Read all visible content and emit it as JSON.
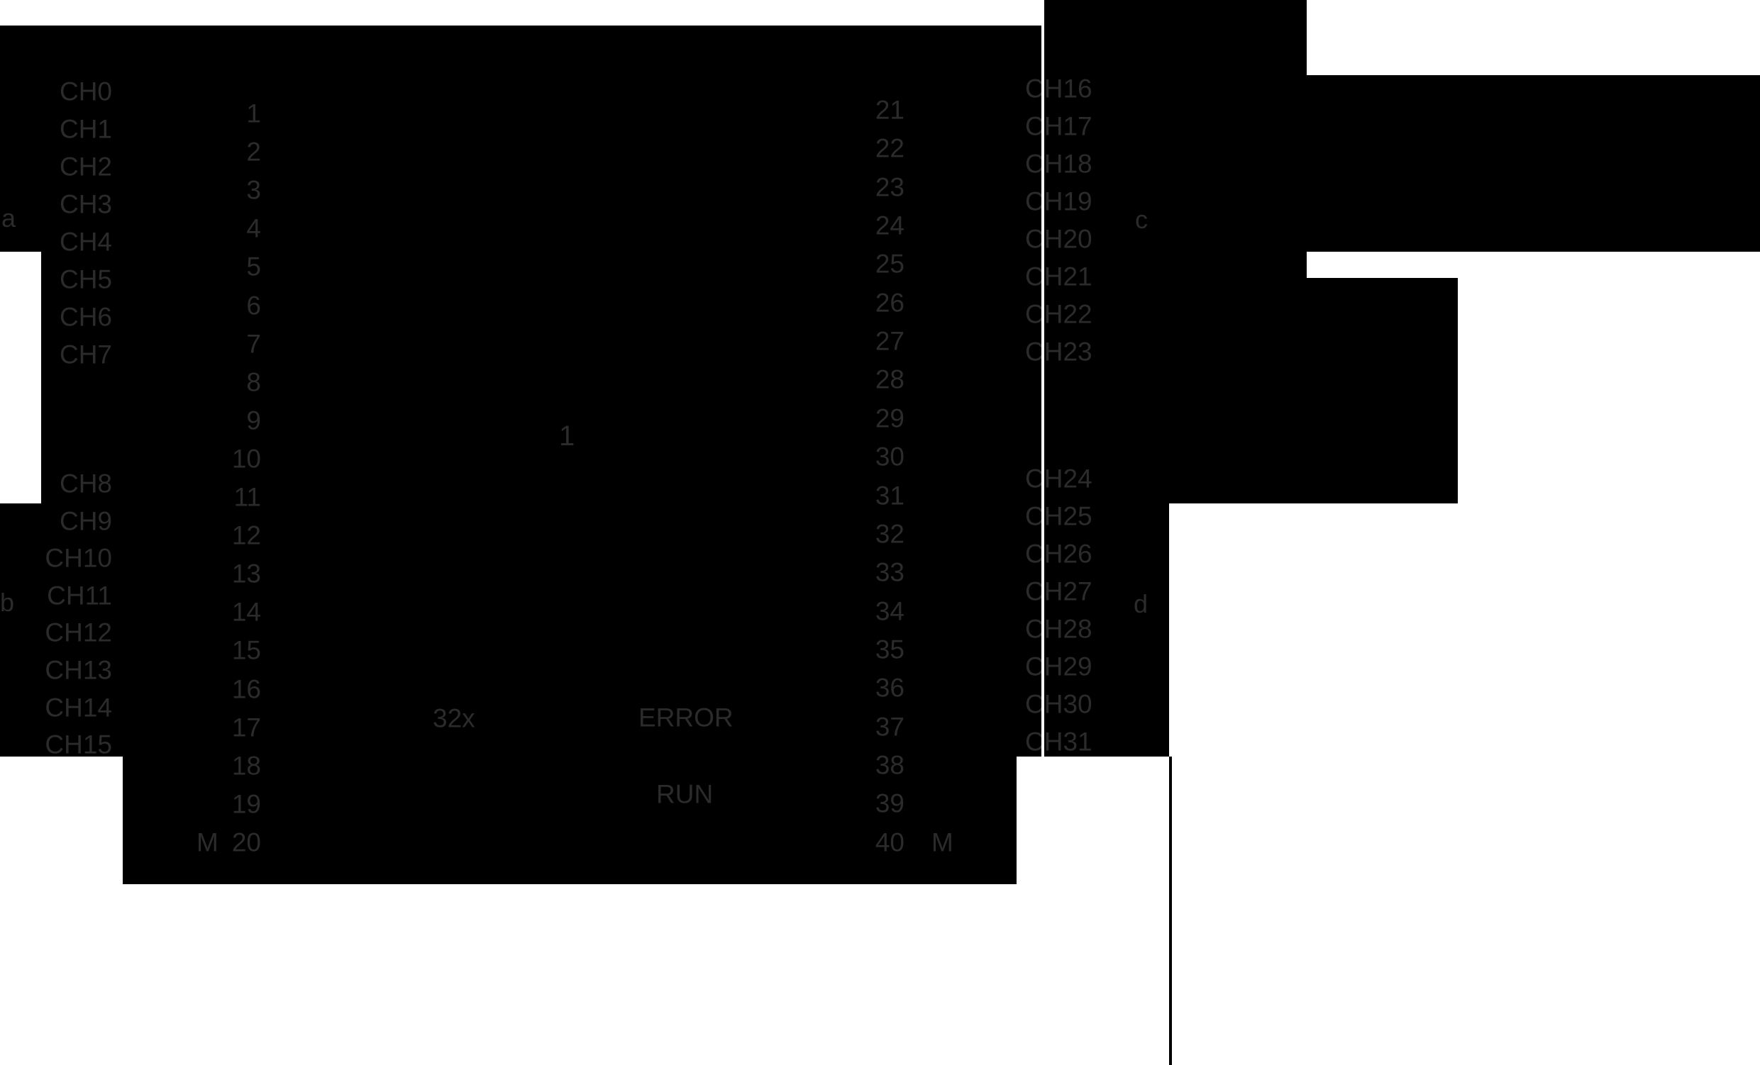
{
  "diagram": {
    "colors": {
      "panel_black": "#000000",
      "background_white": "#ffffff",
      "label_gray": "#2b2b2b"
    },
    "left_block": {
      "channels_top": [
        "CH0",
        "CH1",
        "CH2",
        "CH3",
        "CH4",
        "CH5",
        "CH6",
        "CH7"
      ],
      "channels_bottom": [
        "CH8",
        "CH9",
        "CH10",
        "CH11",
        "CH12",
        "CH13",
        "CH14",
        "CH15"
      ],
      "terminals": [
        "1",
        "2",
        "3",
        "4",
        "5",
        "6",
        "7",
        "8",
        "9",
        "10",
        "11",
        "12",
        "13",
        "14",
        "15",
        "16",
        "17",
        "18",
        "19",
        "20"
      ],
      "ground_label": "M"
    },
    "right_block": {
      "channels_top": [
        "CH16",
        "CH17",
        "CH18",
        "CH19",
        "CH20",
        "CH21",
        "CH22",
        "CH23"
      ],
      "channels_bottom": [
        "CH24",
        "CH25",
        "CH26",
        "CH27",
        "CH28",
        "CH29",
        "CH30",
        "CH31"
      ],
      "terminals": [
        "21",
        "22",
        "23",
        "24",
        "25",
        "26",
        "27",
        "28",
        "29",
        "30",
        "31",
        "32",
        "33",
        "34",
        "35",
        "36",
        "37",
        "38",
        "39",
        "40"
      ],
      "ground_label": "M"
    },
    "callouts": {
      "a": "a",
      "b": "b",
      "c": "c",
      "d": "d",
      "group": "1"
    },
    "status": {
      "led_count": "32x",
      "error": "ERROR",
      "run": "RUN"
    }
  }
}
